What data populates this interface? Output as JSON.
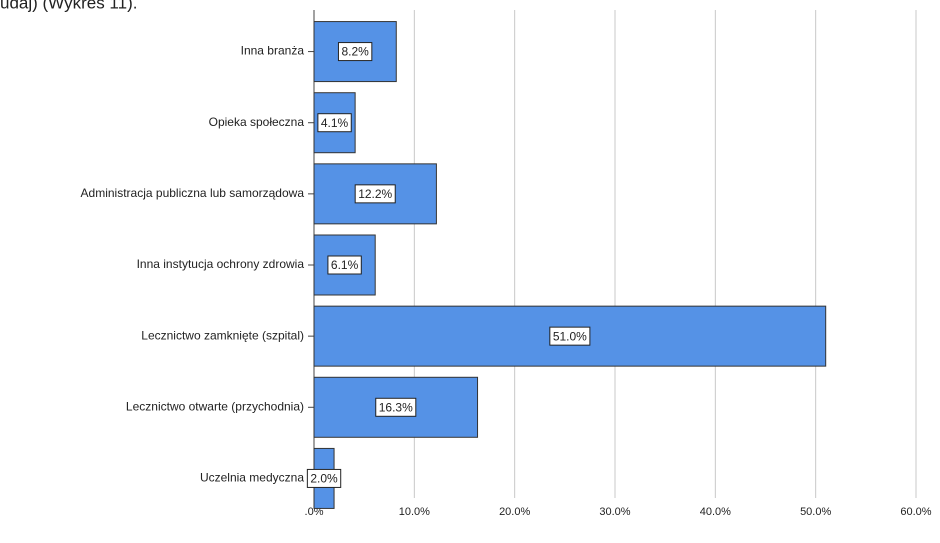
{
  "chart_data": {
    "type": "barh",
    "annotation": "udaj) (Wykres 11).",
    "categories": [
      "Inna branża",
      "Opieka społeczna",
      "Administracja publiczna lub samorządowa",
      "Inna instytucja ochrony zdrowia",
      "Lecznictwo zamknięte (szpital)",
      "Lecznictwo otwarte  (przychodnia)",
      "Uczelnia medyczna"
    ],
    "values": [
      8.2,
      4.1,
      12.2,
      6.1,
      51.0,
      16.3,
      2.0
    ],
    "value_labels": [
      "8.2%",
      "4.1%",
      "12.2%",
      "6.1%",
      "51.0%",
      "16.3%",
      "2.0%"
    ],
    "color": "#5592e6",
    "xlim": [
      0,
      60
    ],
    "xticks": [
      {
        "value": 0,
        "label": ".0%"
      },
      {
        "value": 10,
        "label": "10.0%"
      },
      {
        "value": 20,
        "label": "20.0%"
      },
      {
        "value": 30,
        "label": "30.0%"
      },
      {
        "value": 40,
        "label": "40.0%"
      },
      {
        "value": 50,
        "label": "50.0%"
      },
      {
        "value": 60,
        "label": "60.0%"
      }
    ],
    "grid": true
  }
}
